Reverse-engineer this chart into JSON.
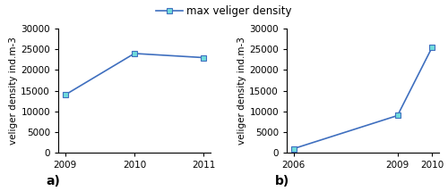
{
  "panel_a": {
    "x": [
      2009,
      2010,
      2011
    ],
    "y": [
      14000,
      24000,
      23000
    ],
    "ylabel": "veliger density ind.m-3",
    "ylim": [
      0,
      30000
    ],
    "yticks": [
      0,
      5000,
      10000,
      15000,
      20000,
      25000,
      30000
    ],
    "panel_label": "a)"
  },
  "panel_b": {
    "x": [
      2006,
      2009,
      2010
    ],
    "y": [
      1000,
      9000,
      25500
    ],
    "ylabel": "veliger density ind.m-3",
    "ylim": [
      0,
      30000
    ],
    "yticks": [
      0,
      5000,
      10000,
      15000,
      20000,
      25000,
      30000
    ],
    "panel_label": "b)"
  },
  "legend_label": "max veliger density",
  "line_color": "#3F6FBF",
  "marker_facecolor": "#70DBDB",
  "marker_edgecolor": "#3F6FBF",
  "marker_style": "s",
  "marker_size": 5,
  "line_width": 1.2,
  "background_color": "#ffffff",
  "legend_fontsize": 8.5,
  "tick_fontsize": 7.5,
  "ylabel_fontsize": 7.5,
  "panel_label_fontsize": 10
}
